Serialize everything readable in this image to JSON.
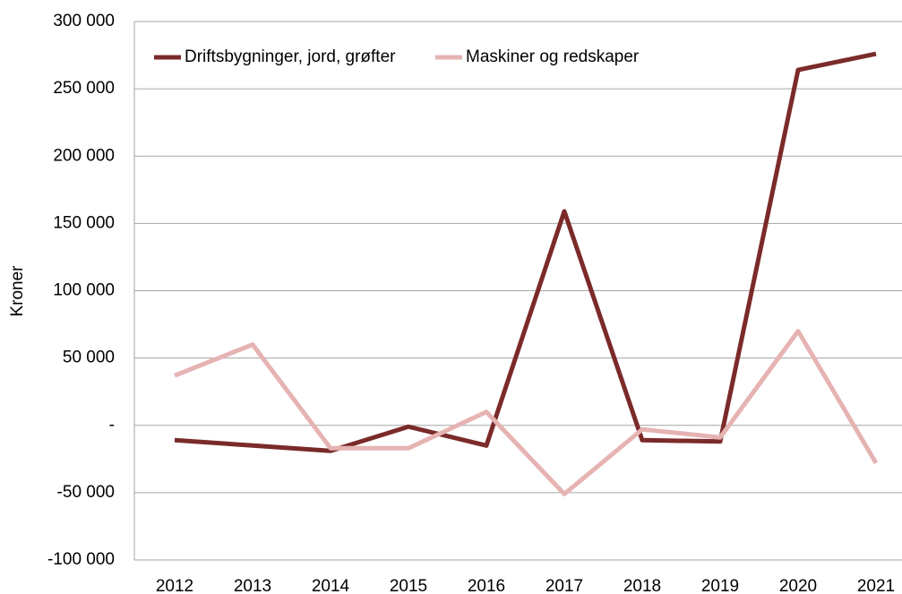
{
  "chart_data": {
    "type": "line",
    "y_label": "Kroner",
    "categories": [
      "2012",
      "2013",
      "2014",
      "2015",
      "2016",
      "2017",
      "2018",
      "2019",
      "2020",
      "2021"
    ],
    "series": [
      {
        "name": "Driftsbygninger, jord, grøfter",
        "color": "#7b2a2a",
        "values": [
          -11000,
          -15000,
          -19000,
          -1000,
          -15000,
          159000,
          -11000,
          -12000,
          264000,
          276000
        ]
      },
      {
        "name": "Maskiner og redskaper",
        "color": "#e6b3b3",
        "values": [
          37000,
          60000,
          -17000,
          -17000,
          10000,
          -51000,
          -3000,
          -9000,
          70000,
          -28000
        ]
      }
    ],
    "ylim": [
      -100000,
      300000
    ],
    "yticks": [
      {
        "value": -100000,
        "label": "-100 000"
      },
      {
        "value": -50000,
        "label": "-50 000"
      },
      {
        "value": 0,
        "label": "-"
      },
      {
        "value": 50000,
        "label": "50 000"
      },
      {
        "value": 100000,
        "label": "100 000"
      },
      {
        "value": 150000,
        "label": "150 000"
      },
      {
        "value": 200000,
        "label": "200 000"
      },
      {
        "value": 250000,
        "label": "250 000"
      },
      {
        "value": 300000,
        "label": "300 000"
      }
    ],
    "grid": true,
    "legend": "top-left"
  }
}
